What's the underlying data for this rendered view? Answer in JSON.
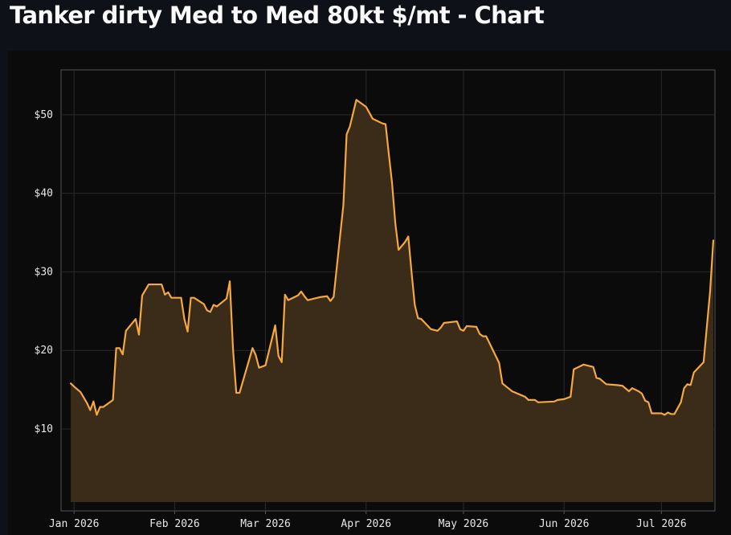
{
  "header": {
    "title": "Tanker dirty Med to Med 80kt $/mt - Chart"
  },
  "colors": {
    "line": "#f5a742",
    "fill": "#3a2c18",
    "grid": "#2a2a2a",
    "plot_border": "#555555",
    "background": "#0b0b0b"
  },
  "chart_data": {
    "type": "area",
    "title": "Tanker dirty Med to Med 80kt $/mt - Chart",
    "xlabel": "",
    "ylabel": "",
    "x_ticks": [
      {
        "date": "2026-01-01",
        "label": "Jan 2026"
      },
      {
        "date": "2026-02-01",
        "label": "Feb 2026"
      },
      {
        "date": "2026-03-01",
        "label": "Mar 2026"
      },
      {
        "date": "2026-04-01",
        "label": "Apr 2026"
      },
      {
        "date": "2026-05-01",
        "label": "May 2026"
      },
      {
        "date": "2026-06-01",
        "label": "Jun 2026"
      },
      {
        "date": "2026-07-01",
        "label": "Jul 2026"
      }
    ],
    "y_ticks": [
      {
        "value": 10,
        "label": "$10"
      },
      {
        "value": 20,
        "label": "$20"
      },
      {
        "value": 30,
        "label": "$30"
      },
      {
        "value": 40,
        "label": "$40"
      },
      {
        "value": 50,
        "label": "$50"
      }
    ],
    "xlim": [
      "2025-12-28",
      "2026-07-17"
    ],
    "ylim": [
      0.7,
      55.4
    ],
    "grid": true,
    "series": [
      {
        "name": "",
        "points": [
          [
            "2025-12-31",
            15.8
          ],
          [
            "2026-01-01",
            15.4
          ],
          [
            "2026-01-03",
            14.7
          ],
          [
            "2026-01-05",
            13.3
          ],
          [
            "2026-01-06",
            12.4
          ],
          [
            "2026-01-07",
            13.5
          ],
          [
            "2026-01-08",
            11.8
          ],
          [
            "2026-01-09",
            12.8
          ],
          [
            "2026-01-10",
            12.8
          ],
          [
            "2026-01-11",
            13.1
          ],
          [
            "2026-01-13",
            13.7
          ],
          [
            "2026-01-14",
            20.3
          ],
          [
            "2026-01-15",
            20.3
          ],
          [
            "2026-01-16",
            19.5
          ],
          [
            "2026-01-17",
            22.5
          ],
          [
            "2026-01-20",
            24.0
          ],
          [
            "2026-01-21",
            22.0
          ],
          [
            "2026-01-22",
            27.0
          ],
          [
            "2026-01-24",
            28.4
          ],
          [
            "2026-01-28",
            28.4
          ],
          [
            "2026-01-29",
            27.1
          ],
          [
            "2026-01-30",
            27.4
          ],
          [
            "2026-01-31",
            26.7
          ],
          [
            "2026-02-03",
            26.7
          ],
          [
            "2026-02-04",
            24.0
          ],
          [
            "2026-02-05",
            22.4
          ],
          [
            "2026-02-06",
            26.7
          ],
          [
            "2026-02-07",
            26.7
          ],
          [
            "2026-02-10",
            25.9
          ],
          [
            "2026-02-11",
            25.1
          ],
          [
            "2026-02-12",
            24.9
          ],
          [
            "2026-02-13",
            25.8
          ],
          [
            "2026-02-14",
            25.6
          ],
          [
            "2026-02-17",
            26.6
          ],
          [
            "2026-02-18",
            28.8
          ],
          [
            "2026-02-19",
            20.1
          ],
          [
            "2026-02-20",
            14.6
          ],
          [
            "2026-02-21",
            14.6
          ],
          [
            "2026-02-25",
            20.3
          ],
          [
            "2026-02-26",
            19.4
          ],
          [
            "2026-02-27",
            17.8
          ],
          [
            "2026-03-01",
            18.1
          ],
          [
            "2026-03-04",
            23.2
          ],
          [
            "2026-03-05",
            19.3
          ],
          [
            "2026-03-06",
            18.5
          ],
          [
            "2026-03-07",
            27.1
          ],
          [
            "2026-03-08",
            26.4
          ],
          [
            "2026-03-11",
            27.0
          ],
          [
            "2026-03-12",
            27.5
          ],
          [
            "2026-03-13",
            26.9
          ],
          [
            "2026-03-14",
            26.4
          ],
          [
            "2026-03-18",
            26.8
          ],
          [
            "2026-03-20",
            26.9
          ],
          [
            "2026-03-21",
            26.3
          ],
          [
            "2026-03-22",
            26.8
          ],
          [
            "2026-03-25",
            38.5
          ],
          [
            "2026-03-26",
            47.5
          ],
          [
            "2026-03-27",
            48.5
          ],
          [
            "2026-03-29",
            51.9
          ],
          [
            "2026-04-01",
            51.0
          ],
          [
            "2026-04-03",
            49.5
          ],
          [
            "2026-04-06",
            48.9
          ],
          [
            "2026-04-07",
            48.8
          ],
          [
            "2026-04-08",
            45.0
          ],
          [
            "2026-04-09",
            41.3
          ],
          [
            "2026-04-10",
            36.2
          ],
          [
            "2026-04-11",
            32.8
          ],
          [
            "2026-04-13",
            33.8
          ],
          [
            "2026-04-14",
            34.5
          ],
          [
            "2026-04-15",
            30.0
          ],
          [
            "2026-04-16",
            25.8
          ],
          [
            "2026-04-17",
            24.1
          ],
          [
            "2026-04-18",
            24.0
          ],
          [
            "2026-04-21",
            22.7
          ],
          [
            "2026-04-23",
            22.5
          ],
          [
            "2026-04-24",
            22.9
          ],
          [
            "2026-04-25",
            23.5
          ],
          [
            "2026-04-29",
            23.7
          ],
          [
            "2026-04-30",
            22.7
          ],
          [
            "2026-05-01",
            22.5
          ],
          [
            "2026-05-02",
            23.1
          ],
          [
            "2026-05-05",
            23.0
          ],
          [
            "2026-05-06",
            22.1
          ],
          [
            "2026-05-07",
            21.8
          ],
          [
            "2026-05-08",
            21.8
          ],
          [
            "2026-05-12",
            18.4
          ],
          [
            "2026-05-13",
            15.8
          ],
          [
            "2026-05-16",
            14.8
          ],
          [
            "2026-05-20",
            14.1
          ],
          [
            "2026-05-21",
            13.7
          ],
          [
            "2026-05-23",
            13.7
          ],
          [
            "2026-05-24",
            13.4
          ],
          [
            "2026-05-29",
            13.5
          ],
          [
            "2026-05-30",
            13.7
          ],
          [
            "2026-06-01",
            13.8
          ],
          [
            "2026-06-03",
            14.1
          ],
          [
            "2026-06-04",
            17.6
          ],
          [
            "2026-06-07",
            18.2
          ],
          [
            "2026-06-08",
            18.1
          ],
          [
            "2026-06-10",
            17.9
          ],
          [
            "2026-06-11",
            16.5
          ],
          [
            "2026-06-12",
            16.4
          ],
          [
            "2026-06-14",
            15.7
          ],
          [
            "2026-06-17",
            15.6
          ],
          [
            "2026-06-19",
            15.5
          ],
          [
            "2026-06-21",
            14.8
          ],
          [
            "2026-06-22",
            15.2
          ],
          [
            "2026-06-24",
            14.8
          ],
          [
            "2026-06-25",
            14.5
          ],
          [
            "2026-06-26",
            13.6
          ],
          [
            "2026-06-27",
            13.4
          ],
          [
            "2026-06-28",
            12.0
          ],
          [
            "2026-07-01",
            12.0
          ],
          [
            "2026-07-02",
            11.8
          ],
          [
            "2026-07-03",
            12.1
          ],
          [
            "2026-07-04",
            11.9
          ],
          [
            "2026-07-05",
            11.9
          ],
          [
            "2026-07-07",
            13.4
          ],
          [
            "2026-07-08",
            15.2
          ],
          [
            "2026-07-09",
            15.7
          ],
          [
            "2026-07-10",
            15.6
          ],
          [
            "2026-07-11",
            17.2
          ],
          [
            "2026-07-14",
            18.5
          ],
          [
            "2026-07-16",
            27.5
          ],
          [
            "2026-07-17",
            34.0
          ]
        ]
      }
    ]
  }
}
